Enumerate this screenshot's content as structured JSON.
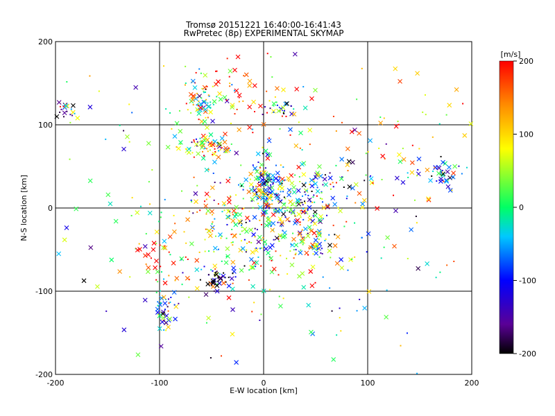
{
  "chart_data": {
    "type": "scatter",
    "title": "Tromsø 20151221 16:40:00-16:41:43",
    "subtitle": "RwPretec (8p) EXPERIMENTAL SKYMAP",
    "xlabel": "E-W location [km]",
    "ylabel": "N-S location [km]",
    "xlim": [
      -200,
      200
    ],
    "ylim": [
      -200,
      200
    ],
    "x_ticks": [
      -200,
      -100,
      0,
      100,
      200
    ],
    "y_ticks": [
      -200,
      -100,
      0,
      100,
      200
    ],
    "grid": true,
    "gridlines_x": [
      -100,
      0,
      100
    ],
    "gridlines_y": [
      -100,
      0,
      100
    ],
    "colorbar": {
      "label": "[m/s]",
      "range": [
        -200,
        200
      ],
      "ticks": [
        200,
        100,
        0,
        -100,
        -200
      ],
      "placement": "right",
      "colors": [
        "#000000",
        "#5a0096",
        "#0000ff",
        "#00c8ff",
        "#00ff64",
        "#ffff00",
        "#ff8c00",
        "#ff0000"
      ]
    },
    "clusters": [
      {
        "cx": 0,
        "cy": 30,
        "sx": 8,
        "sy": 10,
        "n": 70,
        "v": -20
      },
      {
        "cx": 20,
        "cy": 5,
        "sx": 30,
        "sy": 25,
        "n": 220,
        "v": -60
      },
      {
        "cx": -15,
        "cy": -30,
        "sx": 40,
        "sy": 35,
        "n": 200,
        "v": 80
      },
      {
        "cx": -55,
        "cy": 75,
        "sx": 12,
        "sy": 7,
        "n": 70,
        "v": 110
      },
      {
        "cx": -60,
        "cy": 130,
        "sx": 12,
        "sy": 12,
        "n": 60,
        "v": 50
      },
      {
        "cx": -45,
        "cy": -85,
        "sx": 7,
        "sy": 7,
        "n": 45,
        "v": -195
      },
      {
        "cx": -95,
        "cy": -125,
        "sx": 6,
        "sy": 12,
        "n": 40,
        "v": -30
      },
      {
        "cx": 170,
        "cy": 40,
        "sx": 12,
        "sy": 8,
        "n": 40,
        "v": -110
      },
      {
        "cx": 15,
        "cy": 120,
        "sx": 8,
        "sy": 5,
        "n": 25,
        "v": -130
      },
      {
        "cx": -190,
        "cy": 115,
        "sx": 8,
        "sy": 8,
        "n": 20,
        "v": -120
      },
      {
        "cx": 45,
        "cy": -40,
        "sx": 10,
        "sy": 10,
        "n": 50,
        "v": 60
      },
      {
        "cx": -100,
        "cy": -60,
        "sx": 15,
        "sy": 15,
        "n": 40,
        "v": 150
      },
      {
        "cx": -20,
        "cy": 140,
        "sx": 40,
        "sy": 30,
        "n": 60,
        "v": 170
      },
      {
        "cx": 100,
        "cy": 70,
        "sx": 60,
        "sy": 40,
        "n": 60,
        "v": 140
      },
      {
        "cx": 0,
        "cy": 0,
        "sx": 110,
        "sy": 110,
        "n": 280,
        "v": 0
      }
    ]
  }
}
